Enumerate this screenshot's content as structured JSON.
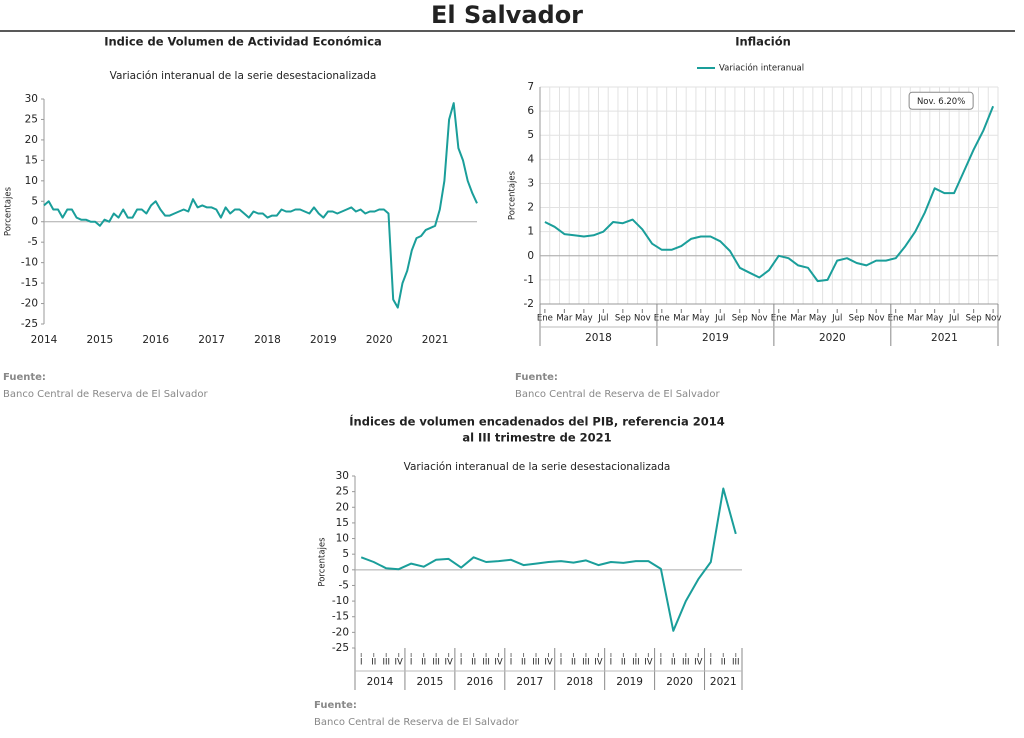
{
  "header": {
    "title": "El Salvador"
  },
  "chart_data": [
    {
      "type": "line",
      "title": "Indice de Volumen de  Actividad Económica",
      "subtitle": "Variación interanual de la serie desestacionalizada",
      "y_label": "Porcentajes",
      "color": "#1a9e9a",
      "categories": [
        "2014",
        null,
        null,
        null,
        null,
        null,
        null,
        null,
        null,
        null,
        null,
        null,
        "2015",
        null,
        null,
        null,
        null,
        null,
        null,
        null,
        null,
        null,
        null,
        null,
        "2016",
        null,
        null,
        null,
        null,
        null,
        null,
        null,
        null,
        null,
        null,
        null,
        "2017",
        null,
        null,
        null,
        null,
        null,
        null,
        null,
        null,
        null,
        null,
        null,
        "2018",
        null,
        null,
        null,
        null,
        null,
        null,
        null,
        null,
        null,
        null,
        null,
        "2019",
        null,
        null,
        null,
        null,
        null,
        null,
        null,
        null,
        null,
        null,
        null,
        "2020",
        null,
        null,
        null,
        null,
        null,
        null,
        null,
        null,
        null,
        null,
        null,
        "2021",
        null,
        null,
        null,
        null,
        null,
        null,
        null,
        null,
        null
      ],
      "values": [
        4,
        5,
        3,
        3,
        1,
        3,
        3,
        1,
        0.5,
        0.5,
        0,
        0,
        -1,
        0.5,
        0,
        2,
        1,
        3,
        1,
        1,
        3,
        3,
        2,
        4,
        5,
        3,
        1.5,
        1.5,
        2,
        2.5,
        3,
        2.5,
        5.5,
        3.5,
        4,
        3.5,
        3.5,
        3,
        1,
        3.5,
        2,
        3,
        3,
        2,
        1,
        2.5,
        2,
        2,
        1,
        1.5,
        1.5,
        3,
        2.5,
        2.5,
        3,
        3,
        2.5,
        2,
        3.5,
        2,
        1,
        2.5,
        2.5,
        2,
        2.5,
        3,
        3.5,
        2.5,
        3,
        2,
        2.5,
        2.5,
        3,
        3,
        2,
        -19,
        -21,
        -15,
        -12,
        -7,
        -4,
        -3.5,
        -2,
        -1.5,
        -1,
        3,
        10,
        25,
        29,
        18,
        15,
        10,
        7,
        4.5
      ],
      "ylim": [
        -25,
        30
      ],
      "yticks": [
        -25,
        -20,
        -15,
        -10,
        -5,
        0,
        5,
        10,
        15,
        20,
        25,
        30
      ],
      "grid": false,
      "source_label": "Fuente:",
      "source": "Banco Central de Reserva de El Salvador"
    },
    {
      "type": "line",
      "title": "Inflación",
      "y_label": "Porcentajes",
      "categories": [
        "Ene",
        null,
        "Mar",
        null,
        "May",
        null,
        "Jul",
        null,
        "Sep",
        null,
        "Nov",
        null,
        "Ene",
        null,
        "Mar",
        null,
        "May",
        null,
        "Jul",
        null,
        "Sep",
        null,
        "Nov",
        null,
        "Ene",
        null,
        "Mar",
        null,
        "May",
        null,
        "Jul",
        null,
        "Sep",
        null,
        "Nov",
        null,
        "Ene",
        null,
        "Mar",
        null,
        "May",
        null,
        "Jul",
        null,
        "Sep",
        null,
        "Nov"
      ],
      "groups": [
        "2018",
        "2019",
        "2020",
        "2021"
      ],
      "series": [
        {
          "name": "Variación interanual",
          "color": "#1a9e9a",
          "values": [
            1.4,
            1.2,
            0.9,
            0.85,
            0.8,
            0.85,
            1.0,
            1.4,
            1.35,
            1.5,
            1.1,
            0.5,
            0.25,
            0.25,
            0.4,
            0.7,
            0.8,
            0.8,
            0.6,
            0.2,
            -0.5,
            -0.7,
            -0.9,
            -0.6,
            0.0,
            -0.1,
            -0.4,
            -0.5,
            -1.05,
            -1.0,
            -0.2,
            -0.1,
            -0.3,
            -0.4,
            -0.2,
            -0.2,
            -0.1,
            0.4,
            1.0,
            1.8,
            2.8,
            2.6,
            2.6,
            3.5,
            4.4,
            5.2,
            6.2
          ]
        }
      ],
      "annotation": "Nov. 6.20%",
      "ylim": [
        -2,
        7
      ],
      "yticks": [
        -2,
        -1,
        0,
        1,
        2,
        3,
        4,
        5,
        6,
        7
      ],
      "grid": true,
      "source_label": "Fuente:",
      "source": "Banco Central de Reserva de El Salvador"
    },
    {
      "type": "line",
      "title": [
        "Índices de volumen encadenados del PIB, referencia 2014",
        "al III trimestre de 2021"
      ],
      "subtitle": "Variación interanual de la serie desestacionalizada",
      "y_label": "Porcentajes",
      "color": "#1a9e9a",
      "categories": [
        "I",
        "II",
        "III",
        "IV",
        "I",
        "II",
        "III",
        "IV",
        "I",
        "II",
        "III",
        "IV",
        "I",
        "II",
        "III",
        "IV",
        "I",
        "II",
        "III",
        "IV",
        "I",
        "II",
        "III",
        "IV",
        "I",
        "II",
        "III",
        "IV",
        "I",
        "II",
        "III"
      ],
      "groups": [
        "2014",
        "2015",
        "2016",
        "2017",
        "2018",
        "2019",
        "2020",
        "2021"
      ],
      "values": [
        4,
        2.5,
        0.5,
        0.2,
        2,
        1,
        3.2,
        3.5,
        0.7,
        4,
        2.5,
        2.8,
        3.2,
        1.5,
        2,
        2.5,
        2.8,
        2.3,
        3,
        1.5,
        2.5,
        2.2,
        2.8,
        2.8,
        0.3,
        -19.5,
        -10,
        -3,
        2.5,
        26,
        11.5
      ],
      "ylim": [
        -25,
        30
      ],
      "yticks": [
        -25,
        -20,
        -15,
        -10,
        -5,
        0,
        5,
        10,
        15,
        20,
        25,
        30
      ],
      "grid": false,
      "source_label": "Fuente:",
      "source": "Banco Central de Reserva de El Salvador"
    }
  ]
}
